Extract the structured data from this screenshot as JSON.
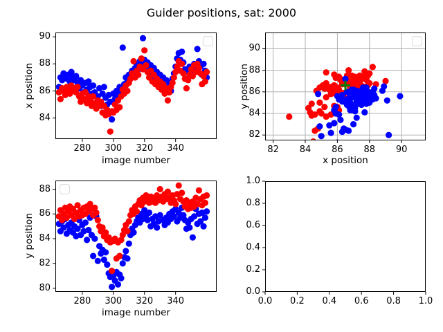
{
  "figure": {
    "title": "Guider positions, sat: 2000",
    "background": "#ffffff"
  },
  "colors": {
    "red_series": "#ff0000",
    "blue_series": "#0000ff",
    "target_marker_green": "#008000",
    "grid_line": "#b0b0b0",
    "axis_border": "#000000",
    "legend_border": "#d9d9d9"
  },
  "guider_data": {
    "image_number": [
      265,
      266,
      267,
      268,
      269,
      270,
      271,
      272,
      273,
      274,
      275,
      276,
      277,
      278,
      279,
      280,
      281,
      282,
      283,
      284,
      285,
      286,
      287,
      288,
      289,
      290,
      291,
      292,
      293,
      294,
      295,
      296,
      297,
      298,
      299,
      300,
      301,
      302,
      303,
      304,
      305,
      306,
      307,
      308,
      309,
      310,
      311,
      312,
      313,
      314,
      315,
      316,
      317,
      318,
      319,
      320,
      321,
      322,
      323,
      324,
      325,
      326,
      327,
      328,
      329,
      330,
      331,
      332,
      333,
      334,
      335,
      336,
      337,
      338,
      339,
      340,
      341,
      342,
      343,
      344,
      345,
      346,
      347,
      348,
      349,
      350,
      351,
      352,
      353,
      354,
      355,
      356,
      357,
      358,
      359,
      360
    ],
    "red_x_position": [
      85.9,
      85.4,
      86.2,
      86.0,
      85.7,
      86.3,
      86.1,
      85.8,
      86.4,
      86.0,
      86.2,
      85.9,
      86.3,
      85.6,
      85.2,
      85.8,
      85.4,
      85.9,
      85.1,
      85.6,
      85.3,
      84.9,
      85.6,
      85.1,
      84.7,
      85.3,
      84.9,
      85.2,
      84.4,
      84.9,
      84.2,
      84.6,
      84.3,
      83.0,
      84.5,
      84.4,
      85.0,
      84.6,
      85.3,
      84.8,
      85.6,
      86.1,
      85.8,
      86.4,
      86.0,
      86.6,
      86.9,
      87.3,
      88.2,
      87.0,
      87.5,
      87.2,
      87.8,
      88.4,
      87.6,
      89.0,
      87.9,
      87.4,
      87.0,
      87.5,
      86.7,
      87.2,
      86.5,
      86.9,
      86.3,
      86.7,
      86.1,
      86.5,
      85.8,
      86.2,
      85.3,
      85.9,
      86.3,
      86.6,
      87.0,
      87.4,
      87.8,
      88.2,
      87.5,
      88.0,
      87.3,
      86.9,
      86.2,
      86.8,
      87.2,
      87.6,
      87.1,
      87.9,
      87.4,
      88.0,
      87.7,
      87.3,
      86.5,
      87.1,
      86.7,
      87.4
    ],
    "blue_x_position": [
      86.3,
      87.0,
      86.8,
      87.3,
      87.1,
      86.9,
      87.2,
      86.7,
      87.4,
      87.0,
      86.8,
      87.1,
      86.6,
      86.2,
      86.8,
      86.4,
      85.9,
      86.6,
      86.1,
      86.7,
      86.3,
      85.8,
      86.4,
      85.9,
      84.8,
      85.6,
      86.2,
      84.9,
      85.8,
      86.3,
      85.5,
      85.0,
      85.7,
      85.2,
      83.9,
      85.8,
      85.4,
      86.0,
      85.7,
      86.3,
      85.9,
      89.2,
      86.5,
      87.0,
      86.7,
      87.2,
      86.9,
      87.5,
      87.1,
      87.7,
      88.0,
      87.6,
      88.2,
      87.9,
      89.9,
      88.3,
      87.8,
      88.1,
      87.5,
      87.9,
      87.2,
      87.7,
      87.0,
      87.4,
      86.8,
      87.2,
      86.5,
      87.0,
      86.3,
      86.8,
      86.1,
      86.6,
      86.0,
      86.9,
      87.3,
      87.8,
      88.4,
      88.8,
      88.3,
      88.9,
      88.1,
      87.6,
      86.9,
      87.4,
      87.8,
      87.3,
      87.7,
      88.0,
      87.6,
      89.1,
      88.2,
      87.8,
      87.2,
      88.0,
      87.5,
      87.0
    ],
    "red_y_position": [
      85.8,
      86.3,
      85.5,
      86.0,
      86.5,
      85.7,
      86.2,
      86.6,
      85.9,
      86.4,
      85.6,
      86.1,
      86.7,
      85.8,
      86.3,
      85.9,
      86.5,
      86.0,
      86.6,
      86.2,
      86.8,
      86.4,
      85.9,
      86.5,
      86.1,
      85.5,
      85.0,
      84.6,
      84.9,
      84.2,
      84.5,
      83.9,
      84.1,
      83.7,
      81.4,
      83.8,
      84.0,
      82.4,
      83.7,
      82.6,
      83.9,
      84.3,
      84.7,
      85.1,
      84.6,
      85.4,
      85.9,
      86.3,
      86.0,
      86.6,
      86.2,
      86.8,
      87.1,
      86.7,
      87.3,
      87.0,
      87.5,
      87.2,
      86.9,
      87.4,
      87.0,
      87.3,
      86.9,
      87.5,
      87.1,
      88.0,
      87.4,
      87.0,
      87.6,
      87.2,
      87.8,
      87.3,
      86.9,
      87.5,
      87.1,
      86.8,
      87.6,
      88.3,
      87.2,
      87.7,
      87.0,
      86.6,
      87.1,
      86.4,
      86.9,
      86.5,
      87.0,
      86.6,
      87.3,
      86.8,
      87.9,
      87.2,
      86.7,
      87.4,
      86.9,
      87.5
    ],
    "blue_y_position": [
      85.2,
      84.6,
      85.4,
      84.9,
      85.6,
      84.4,
      85.1,
      84.7,
      85.3,
      84.5,
      85.0,
      84.2,
      84.8,
      85.5,
      84.3,
      85.1,
      84.6,
      85.3,
      83.9,
      84.7,
      85.7,
      84.3,
      82.6,
      84.0,
      85.8,
      82.2,
      83.4,
      82.8,
      83.1,
      82.3,
      82.9,
      81.9,
      81.2,
      80.9,
      80.1,
      81.0,
      80.6,
      81.3,
      80.3,
      81.1,
      80.8,
      82.0,
      82.5,
      83.0,
      82.4,
      83.6,
      84.3,
      84.8,
      84.5,
      85.1,
      85.4,
      85.7,
      85.3,
      86.0,
      85.6,
      86.3,
      85.9,
      85.5,
      86.1,
      85.0,
      85.6,
      85.2,
      85.8,
      84.9,
      85.4,
      85.9,
      87.2,
      85.5,
      85.1,
      85.7,
      85.3,
      86.0,
      85.6,
      86.2,
      85.8,
      86.4,
      85.4,
      86.1,
      85.7,
      86.5,
      85.9,
      85.5,
      84.8,
      85.3,
      84.9,
      85.6,
      84.1,
      85.8,
      86.4,
      85.2,
      86.0,
      85.4,
      86.1,
      85.0,
      85.7,
      86.2
    ]
  },
  "chart_data": [
    {
      "name": "x-position-vs-image-number",
      "type": "scatter",
      "xlabel": "image number",
      "ylabel": "x position",
      "xlim": [
        262.7,
        366.4
      ],
      "ylim": [
        82.45,
        90.32
      ],
      "xticks": {
        "values": [
          280,
          300,
          320,
          340
        ],
        "labels": [
          "280",
          "300",
          "320",
          "340"
        ]
      },
      "yticks": {
        "values": [
          84,
          86,
          88,
          90
        ],
        "labels": [
          "84",
          "86",
          "88",
          "90"
        ]
      },
      "grid": false,
      "legend_loc": "upper right",
      "legend_entries": [],
      "series": [
        {
          "name": "blue-guider",
          "color": "#0000ff",
          "x_ref": "image_number",
          "y_ref": "blue_x_position"
        },
        {
          "name": "red-guider",
          "color": "#ff0000",
          "x_ref": "image_number",
          "y_ref": "red_x_position"
        }
      ]
    },
    {
      "name": "y-position-vs-x-position",
      "type": "scatter",
      "xlabel": "x position",
      "ylabel": "y position",
      "xlim": [
        81.5,
        91.5
      ],
      "ylim": [
        81.5,
        91.5
      ],
      "xticks": {
        "values": [
          82,
          84,
          86,
          88,
          90
        ],
        "labels": [
          "82",
          "84",
          "86",
          "88",
          "90"
        ]
      },
      "yticks": {
        "values": [
          82,
          84,
          86,
          88,
          90
        ],
        "labels": [
          "82",
          "84",
          "86",
          "88",
          "90"
        ]
      },
      "grid": true,
      "legend_loc": "upper right",
      "legend_entries": [],
      "series": [
        {
          "name": "red-guider",
          "color": "#ff0000",
          "x_ref": "red_x_position",
          "y_ref": "red_y_position"
        },
        {
          "name": "blue-guider",
          "color": "#0000ff",
          "x_ref": "blue_x_position",
          "y_ref": "blue_y_position"
        }
      ],
      "annotations": [
        {
          "type": "plus",
          "x": 86.5,
          "y": 86.6,
          "color": "#008000",
          "size": 14
        }
      ]
    },
    {
      "name": "y-position-vs-image-number",
      "type": "scatter",
      "xlabel": "image number",
      "ylabel": "y position",
      "xlim": [
        262.7,
        366.4
      ],
      "ylim": [
        79.7,
        88.7
      ],
      "xticks": {
        "values": [
          280,
          300,
          320,
          340
        ],
        "labels": [
          "280",
          "300",
          "320",
          "340"
        ]
      },
      "yticks": {
        "values": [
          80,
          82,
          84,
          86,
          88
        ],
        "labels": [
          "80",
          "82",
          "84",
          "86",
          "88"
        ]
      },
      "grid": false,
      "legend_loc": "upper left",
      "legend_entries": [],
      "series": [
        {
          "name": "blue-guider",
          "color": "#0000ff",
          "x_ref": "image_number",
          "y_ref": "blue_y_position"
        },
        {
          "name": "red-guider",
          "color": "#ff0000",
          "x_ref": "image_number",
          "y_ref": "red_y_position"
        }
      ]
    },
    {
      "name": "empty-axes",
      "type": "scatter",
      "xlabel": "",
      "ylabel": "",
      "xlim": [
        0,
        1
      ],
      "ylim": [
        0,
        1
      ],
      "xticks": {
        "values": [
          0,
          0.2,
          0.4,
          0.6,
          0.8,
          1
        ],
        "labels": [
          "0.0",
          "0.2",
          "0.4",
          "0.6",
          "0.8",
          "1.0"
        ]
      },
      "yticks": {
        "values": [
          0,
          0.2,
          0.4,
          0.6,
          0.8,
          1
        ],
        "labels": [
          "0.0",
          "0.2",
          "0.4",
          "0.6",
          "0.8",
          "1.0"
        ]
      },
      "grid": false,
      "legend_loc": null,
      "legend_entries": [],
      "series": []
    }
  ]
}
